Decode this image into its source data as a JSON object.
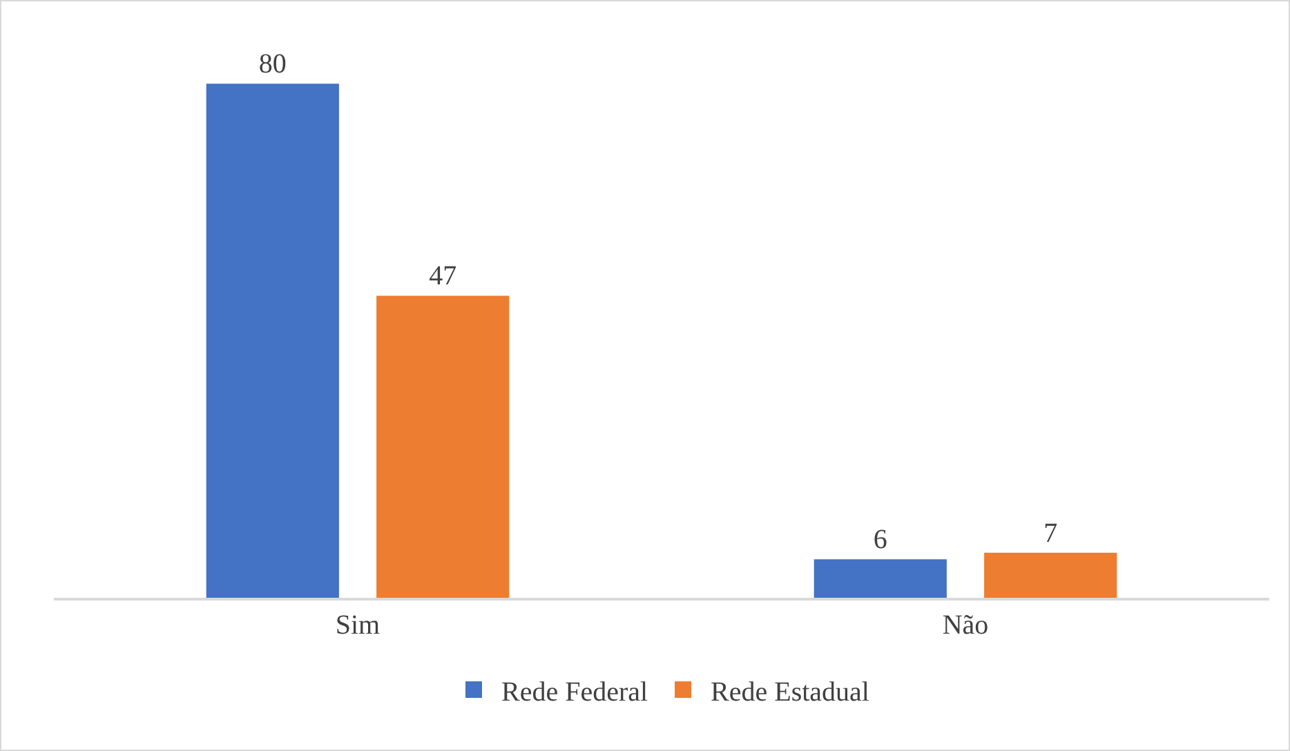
{
  "chart_data": {
    "type": "bar",
    "categories": [
      "Sim",
      "Não"
    ],
    "series": [
      {
        "name": "Rede Federal",
        "color": "#4472c4",
        "values": [
          80,
          6
        ]
      },
      {
        "name": "Rede Estadual",
        "color": "#ed7d31",
        "values": [
          47,
          7
        ]
      }
    ],
    "data_labels": true,
    "grid": false,
    "legend": "bottom"
  }
}
